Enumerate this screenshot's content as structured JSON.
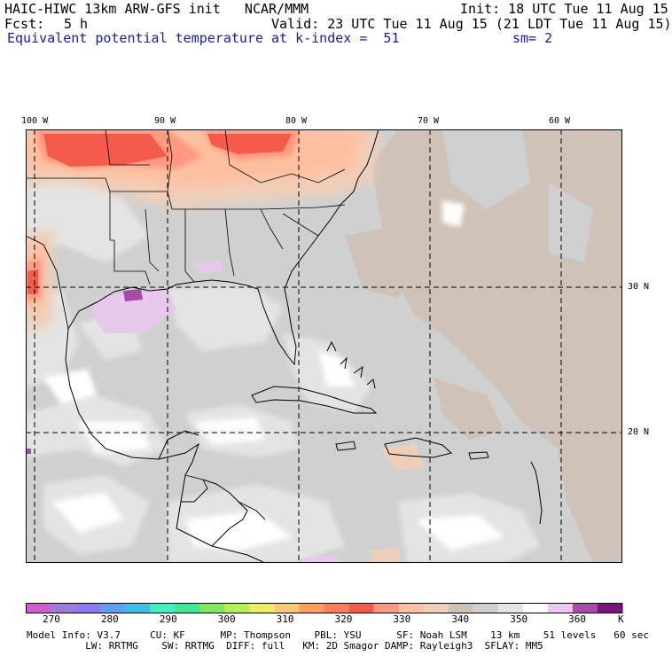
{
  "header": {
    "title": "HAIC-HIWC 13km ARW-GFS init   NCAR/MMM",
    "init": "Init: 18 UTC Tue 11 Aug 15",
    "fcst_label": "Fcst:",
    "fcst_value": "5 h",
    "valid": "Valid: 23 UTC Tue 11 Aug 15 (21 LDT Tue 11 Aug 15)",
    "field": "Equivalent potential temperature",
    "level": "at k-index =  51",
    "smoothing": "sm= 2"
  },
  "map": {
    "longitude_labels": [
      "100 W",
      "90 W",
      "80 W",
      "70 W",
      "60 W"
    ],
    "latitude_labels": [
      "30 N",
      "20 N"
    ]
  },
  "colorbar": {
    "tick_labels": [
      "270",
      "280",
      "290",
      "300",
      "310",
      "320",
      "330",
      "340",
      "350",
      "360"
    ],
    "unit": "K",
    "colors": [
      "#cf5fcf",
      "#9f7bd8",
      "#8a7bf0",
      "#5f9ff0",
      "#3fbfe6",
      "#3ff0c0",
      "#3fe890",
      "#7fe860",
      "#b8f050",
      "#ecf060",
      "#ffc878",
      "#ffa060",
      "#ff7f5a",
      "#f55a4a",
      "#ff9a80",
      "#ffc0a0",
      "#f0cfb8",
      "#cfc2b8",
      "#d0d0d0",
      "#e4e4e4",
      "#ffffff",
      "#e8c8ec",
      "#a84aa8",
      "#7a1580"
    ]
  },
  "footer": {
    "line1": "Model Info: V3.7     CU: KF      MP: Thompson    PBL: YSU      SF: Noah LSM    13 km    51 levels   60 sec",
    "line2": "          LW: RRTMG    SW: RRTMG  DIFF: full   KM: 2D Smagor DAMP: Rayleigh3  SFLAY: MM5"
  }
}
